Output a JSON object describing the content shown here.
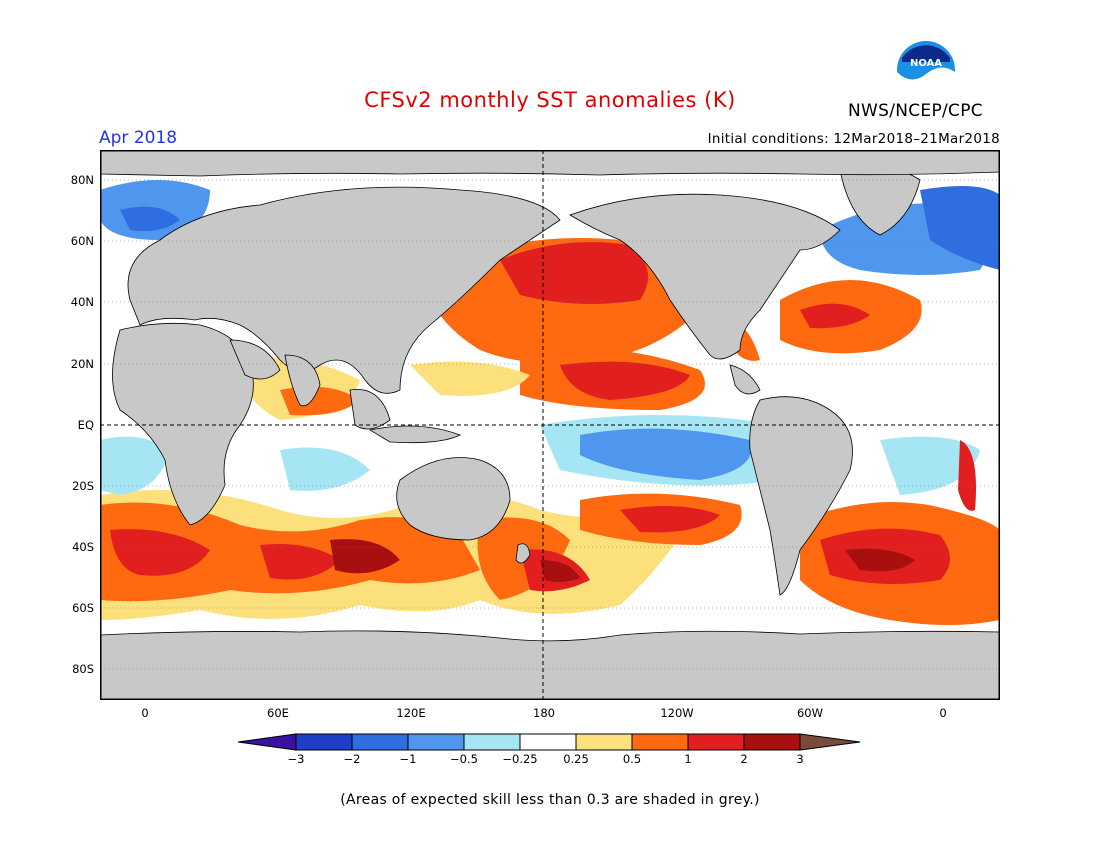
{
  "header": {
    "title": "CFSv2 monthly SST anomalies (K)",
    "month": "Apr 2018",
    "initial_conditions": "Initial conditions: 12Mar2018–21Mar2018",
    "agency": "NWS/NCEP/CPC",
    "logo_text": "NOAA"
  },
  "map": {
    "y_ticks": [
      "80N",
      "60N",
      "40N",
      "20N",
      "EQ",
      "20S",
      "40S",
      "60S",
      "80S"
    ],
    "x_ticks": [
      "0",
      "60E",
      "120E",
      "180",
      "120W",
      "60W",
      "0"
    ]
  },
  "colorbar": {
    "labels": [
      "−3",
      "−2",
      "−1",
      "−0.5",
      "−0.25",
      "0.25",
      "0.5",
      "1",
      "2",
      "3"
    ],
    "colors": [
      "#1e3ec8",
      "#2f6ee0",
      "#4f97ee",
      "#a6e6f4",
      "#ffffff",
      "#fbe07c",
      "#ff6a10",
      "#e11f1f",
      "#a80f0f"
    ],
    "low_extend_color": "#3a12a0",
    "high_extend_color": "#7a4a3c"
  },
  "colors": {
    "land": "#c8c8c8",
    "low_skill": "#bdbdbd",
    "title_red": "#e00000",
    "month_blue": "#2233ee"
  },
  "footer": {
    "note": "(Areas of expected skill less than 0.3 are shaded in grey.)"
  }
}
